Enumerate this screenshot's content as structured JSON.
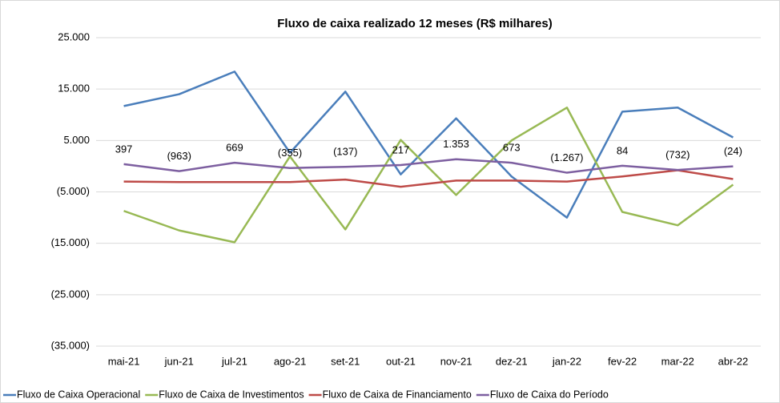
{
  "chart_data": {
    "type": "line",
    "title": "Fluxo de caixa realizado 12 meses (R$ milhares)",
    "categories": [
      "mai-21",
      "jun-21",
      "jul-21",
      "ago-21",
      "set-21",
      "out-21",
      "nov-21",
      "dez-21",
      "jan-22",
      "fev-22",
      "mar-22",
      "abr-22"
    ],
    "series": [
      {
        "name": "Fluxo de Caixa Operacional",
        "color": "#4a7ebb",
        "values": [
          11700,
          14000,
          18400,
          2600,
          14500,
          -1600,
          9300,
          -2000,
          -10000,
          10600,
          11400,
          5600
        ]
      },
      {
        "name": "Fluxo de Caixa de Investimentos",
        "color": "#98b954",
        "values": [
          -8700,
          -12500,
          -14800,
          1900,
          -12300,
          5100,
          -5600,
          5000,
          11400,
          -8900,
          -11500,
          -3600
        ]
      },
      {
        "name": "Fluxo de Caixa de Financiamento",
        "color": "#be4b48",
        "values": [
          -3000,
          -3100,
          -3100,
          -3100,
          -2600,
          -4000,
          -2800,
          -2800,
          -3000,
          -2000,
          -800,
          -2500
        ]
      },
      {
        "name": "Fluxo de Caixa do Período",
        "color": "#7d5fa0",
        "values": [
          397,
          -963,
          669,
          -355,
          -137,
          217,
          1353,
          673,
          -1267,
          84,
          -732,
          -24
        ],
        "value_labels": [
          "397",
          "(963)",
          "669",
          "(355)",
          "(137)",
          "217",
          "1.353",
          "673",
          "(1.267)",
          "84",
          "(732)",
          "(24)"
        ]
      }
    ],
    "ylim": [
      -35000,
      25000
    ],
    "yticks": [
      {
        "value": 25000,
        "label": "25.000"
      },
      {
        "value": 15000,
        "label": "15.000"
      },
      {
        "value": 5000,
        "label": "5.000"
      },
      {
        "value": -5000,
        "label": "(5.000)"
      },
      {
        "value": -15000,
        "label": "(15.000)"
      },
      {
        "value": -25000,
        "label": "(25.000)"
      },
      {
        "value": -35000,
        "label": "(35.000)"
      }
    ],
    "grid": true,
    "legend": "bottom"
  }
}
